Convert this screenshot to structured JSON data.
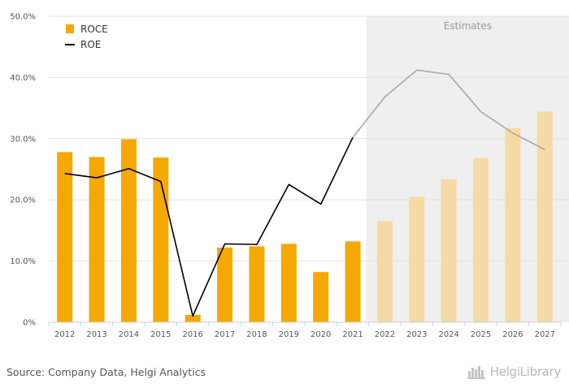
{
  "chart_data": {
    "type": "bar",
    "categories": [
      "2012",
      "2013",
      "2014",
      "2015",
      "2016",
      "2017",
      "2018",
      "2019",
      "2020",
      "2021",
      "2022",
      "2023",
      "2024",
      "2025",
      "2026",
      "2027"
    ],
    "series": [
      {
        "name": "ROCE",
        "kind": "bar",
        "values": [
          27.8,
          27.0,
          29.9,
          26.9,
          1.2,
          12.2,
          12.4,
          12.8,
          8.2,
          13.2,
          16.5,
          20.5,
          23.4,
          26.8,
          31.7,
          34.4
        ]
      },
      {
        "name": "ROE",
        "kind": "line",
        "values": [
          24.3,
          23.6,
          25.1,
          23.0,
          1.0,
          12.8,
          12.7,
          22.5,
          19.3,
          30.2,
          36.8,
          41.2,
          40.5,
          34.4,
          30.9,
          28.2
        ]
      }
    ],
    "estimates_from": "2022",
    "estimates_label": "Estimates",
    "y_ticks": [
      "0%",
      "10.0%",
      "20.0%",
      "30.0%",
      "40.0%",
      "50.0%"
    ],
    "ylim": [
      0,
      50
    ],
    "grid": true,
    "legend_position": "top-left",
    "colors": {
      "roce_actual": "#f5a800",
      "roce_estimate": "#f5dba3",
      "roe_actual": "#000000",
      "roe_estimate": "#a8a8a8",
      "estimates_band": "#efefef"
    }
  },
  "footer": {
    "source": "Source: Company Data, Helgi Analytics",
    "brand_name": "HelgiLibrary",
    "brand_icon": "helgi-library-icon"
  }
}
